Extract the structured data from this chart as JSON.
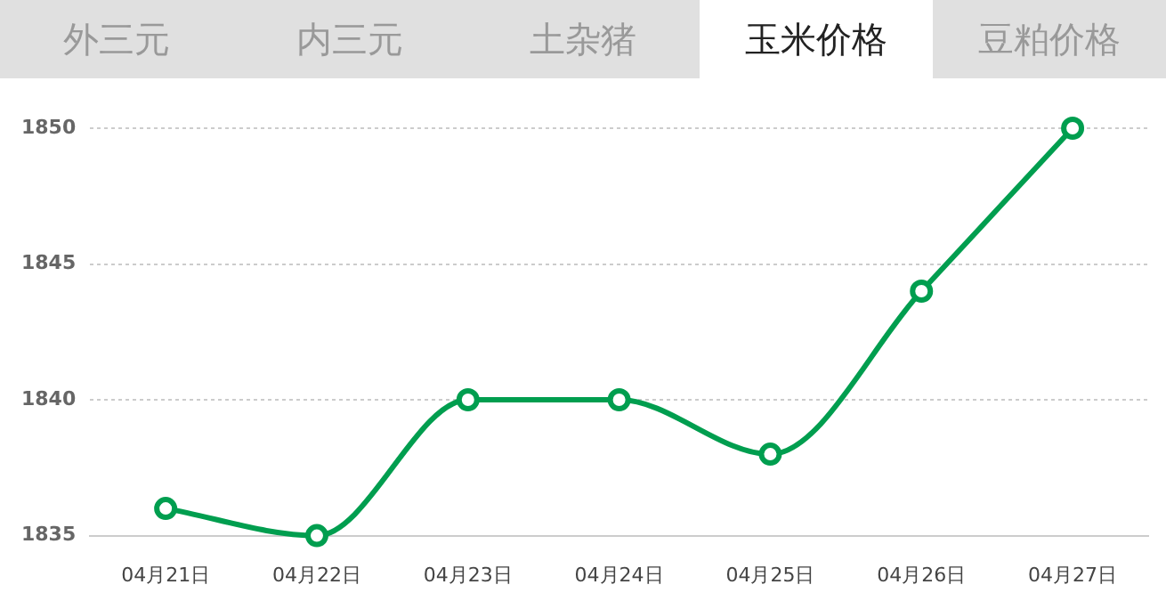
{
  "chart_data": {
    "type": "line",
    "title": "玉米价格",
    "annotations": [
      "外三元",
      "内三元",
      "土杂猪",
      "豆粕价格"
    ],
    "categories": [
      "04月21日",
      "04月22日",
      "04月23日",
      "04月24日",
      "04月25日",
      "04月26日",
      "04月27日"
    ],
    "series": [
      {
        "color": "#009e4f",
        "values": [
          1836,
          1835,
          1840,
          1840,
          1838,
          1844,
          1850
        ]
      }
    ],
    "ylim": [
      1835,
      1850
    ],
    "yticks": [
      1835,
      1840,
      1845,
      1850
    ],
    "grid": "y",
    "legend": false,
    "marker": "circle",
    "line_style": "solid"
  }
}
